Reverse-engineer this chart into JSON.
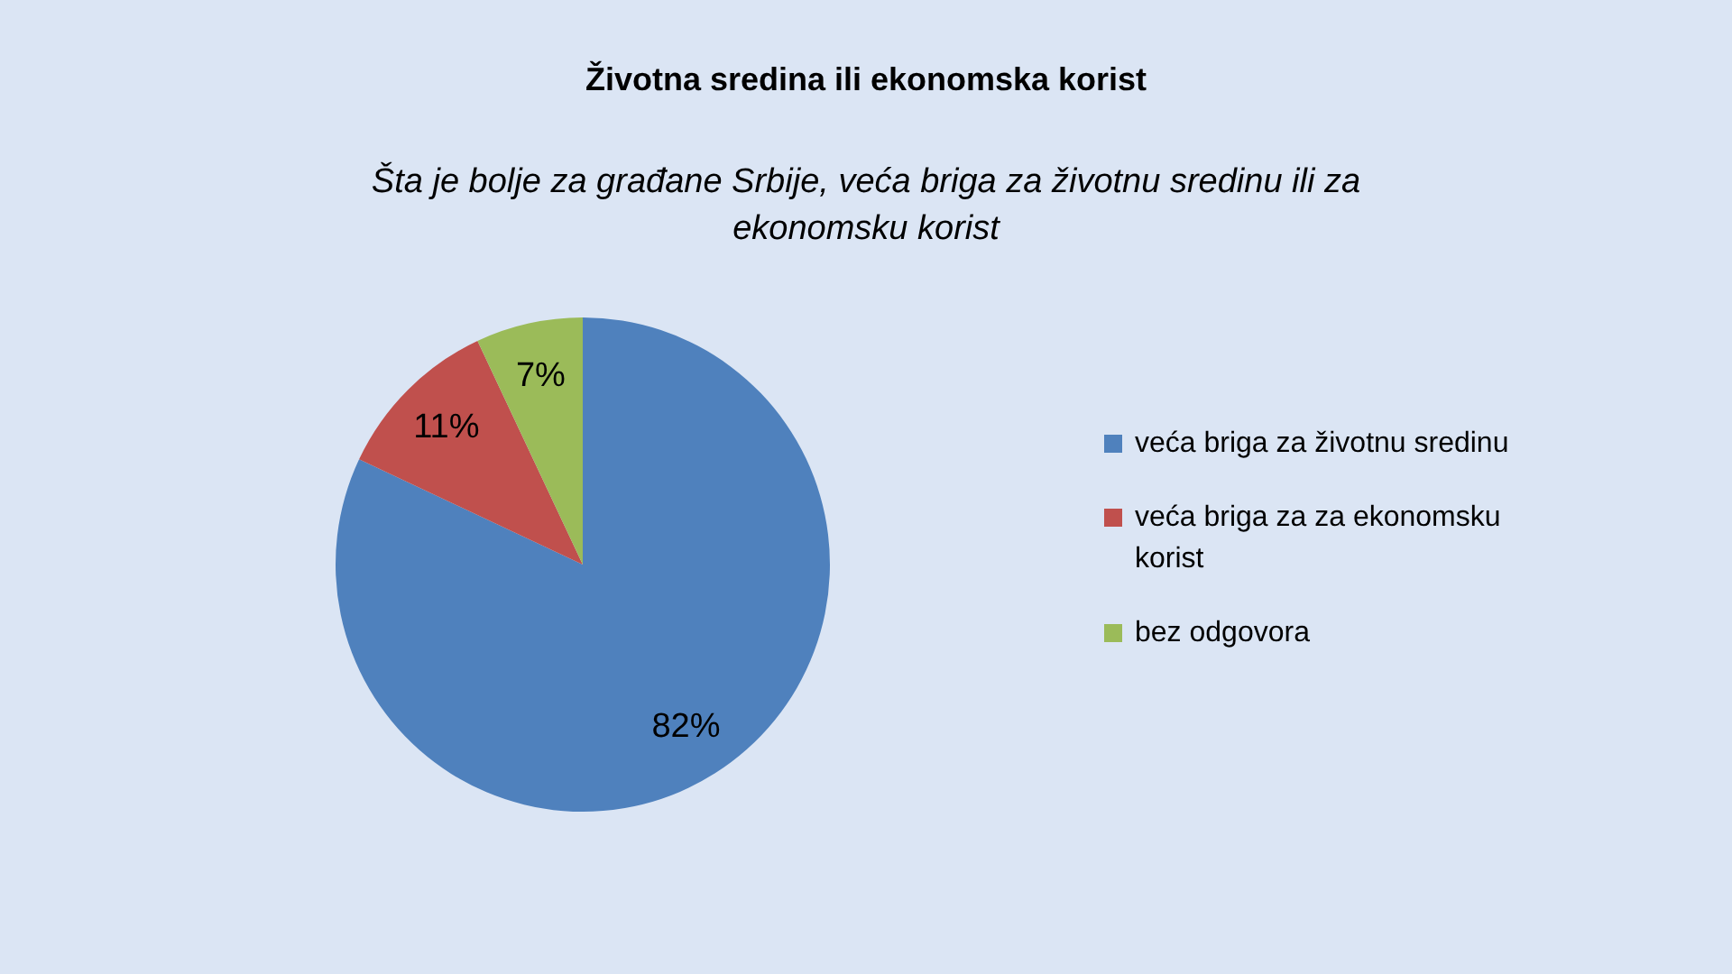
{
  "chart_data": {
    "type": "pie",
    "title": "Životna sredina ili ekonomska korist",
    "subtitle": "Šta je bolje za građane Srbije, veća briga za životnu sredinu ili za ekonomsku korist",
    "categories": [
      "veća briga za životnu sredinu",
      "veća briga za za ekonomsku korist",
      "bez odgovora"
    ],
    "values": [
      82,
      11,
      7
    ],
    "colors": [
      "#4f81bd",
      "#c0504d",
      "#9bbb59"
    ],
    "value_labels": [
      "82%",
      "11%",
      "7%"
    ],
    "legend": "right"
  }
}
